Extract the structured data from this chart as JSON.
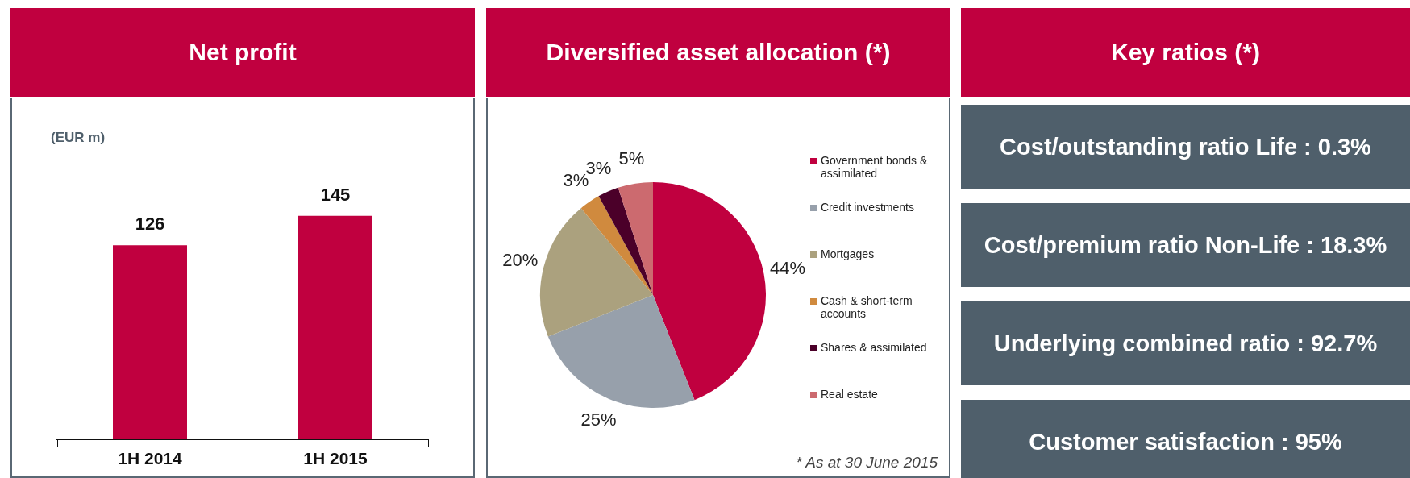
{
  "chart_data": [
    {
      "type": "bar",
      "title": "Net profit",
      "ylabel": "(EUR  m)",
      "categories": [
        "1H 2014",
        "1H 2015"
      ],
      "values": [
        126,
        145
      ],
      "color": "#c0003f",
      "data_labels": true,
      "grid": false,
      "legend": false
    },
    {
      "type": "pie",
      "title": "Diversified asset allocation (*)",
      "categories": [
        "Government bonds & assimilated",
        "Credit investments",
        "Mortgages",
        "Cash & short-term accounts",
        "Shares & assimilated",
        "Real estate"
      ],
      "values": [
        44,
        25,
        20,
        3,
        3,
        5
      ],
      "value_labels": [
        "44%",
        "25%",
        "20%",
        "3%",
        "3%",
        "5%"
      ],
      "colors": [
        "#c0003f",
        "#97a0ab",
        "#aba17e",
        "#d08a3e",
        "#4b0029",
        "#cc6a6f"
      ],
      "legend": "right",
      "annotations": [
        "* As at 30 June 2015"
      ]
    },
    {
      "type": "other",
      "title": "Key ratios (*)",
      "annotations": [
        "Cost/outstanding ratio Life : 0.3%",
        "Cost/premium ratio Non-Life : 18.3%",
        "Underlying combined ratio : 92.7%",
        "Customer satisfaction : 95%"
      ]
    }
  ]
}
